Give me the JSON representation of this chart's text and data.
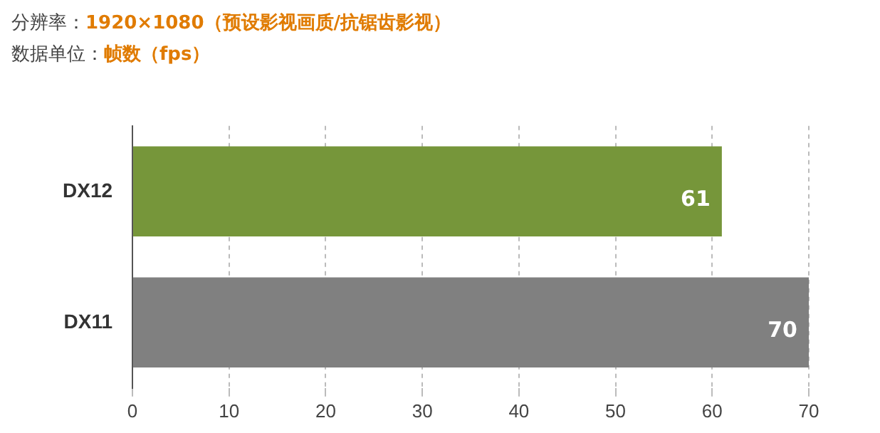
{
  "chart_data": {
    "type": "bar",
    "orientation": "horizontal",
    "title": "分辨率：1920×1080（预设影视画质/抗锯齿影视）",
    "subtitle": "数据单位：帧数（fps）",
    "categories": [
      "DX12",
      "DX11"
    ],
    "values": [
      61,
      70
    ],
    "colors": [
      "#76963a",
      "#808080"
    ],
    "xlim": [
      0,
      70
    ],
    "xticks": [
      0,
      10,
      20,
      30,
      40,
      50,
      60,
      70
    ],
    "grid": "x",
    "data_labels": true,
    "legend": false
  }
}
